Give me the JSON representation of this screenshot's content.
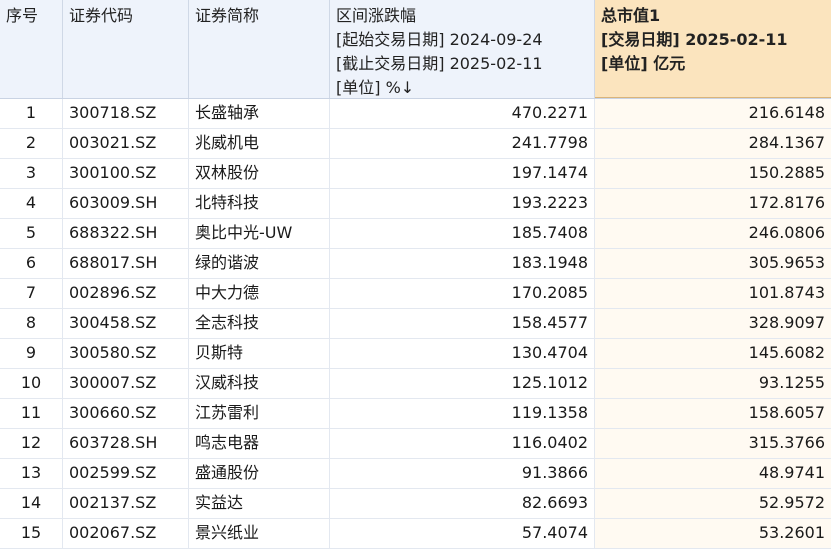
{
  "headers": {
    "index": "序号",
    "code": "证券代码",
    "name": "证券简称",
    "change": {
      "line1": "区间涨跌幅",
      "line2": "[起始交易日期] 2024-09-24",
      "line3": "[截止交易日期] 2025-02-11",
      "line4": "[单位] %↓"
    },
    "market_cap": {
      "line1": "总市值1",
      "line2": "[交易日期] 2025-02-11",
      "line3": "[单位] 亿元"
    }
  },
  "colors": {
    "header_bg": "#eef3fb",
    "highlight_header_bg": "#fbe4be"
  },
  "rows": [
    {
      "index": "1",
      "code": "300718.SZ",
      "name": "长盛轴承",
      "change": "470.2271",
      "market_cap": "216.6148"
    },
    {
      "index": "2",
      "code": "003021.SZ",
      "name": "兆威机电",
      "change": "241.7798",
      "market_cap": "284.1367"
    },
    {
      "index": "3",
      "code": "300100.SZ",
      "name": "双林股份",
      "change": "197.1474",
      "market_cap": "150.2885"
    },
    {
      "index": "4",
      "code": "603009.SH",
      "name": "北特科技",
      "change": "193.2223",
      "market_cap": "172.8176"
    },
    {
      "index": "5",
      "code": "688322.SH",
      "name": "奥比中光-UW",
      "change": "185.7408",
      "market_cap": "246.0806"
    },
    {
      "index": "6",
      "code": "688017.SH",
      "name": "绿的谐波",
      "change": "183.1948",
      "market_cap": "305.9653"
    },
    {
      "index": "7",
      "code": "002896.SZ",
      "name": "中大力德",
      "change": "170.2085",
      "market_cap": "101.8743"
    },
    {
      "index": "8",
      "code": "300458.SZ",
      "name": "全志科技",
      "change": "158.4577",
      "market_cap": "328.9097"
    },
    {
      "index": "9",
      "code": "300580.SZ",
      "name": "贝斯特",
      "change": "130.4704",
      "market_cap": "145.6082"
    },
    {
      "index": "10",
      "code": "300007.SZ",
      "name": "汉威科技",
      "change": "125.1012",
      "market_cap": "93.1255"
    },
    {
      "index": "11",
      "code": "300660.SZ",
      "name": "江苏雷利",
      "change": "119.1358",
      "market_cap": "158.6057"
    },
    {
      "index": "12",
      "code": "603728.SH",
      "name": "鸣志电器",
      "change": "116.0402",
      "market_cap": "315.3766"
    },
    {
      "index": "13",
      "code": "002599.SZ",
      "name": "盛通股份",
      "change": "91.3866",
      "market_cap": "48.9741"
    },
    {
      "index": "14",
      "code": "002137.SZ",
      "name": "实益达",
      "change": "82.6693",
      "market_cap": "52.9572"
    },
    {
      "index": "15",
      "code": "002067.SZ",
      "name": "景兴纸业",
      "change": "57.4074",
      "market_cap": "53.2601"
    }
  ]
}
